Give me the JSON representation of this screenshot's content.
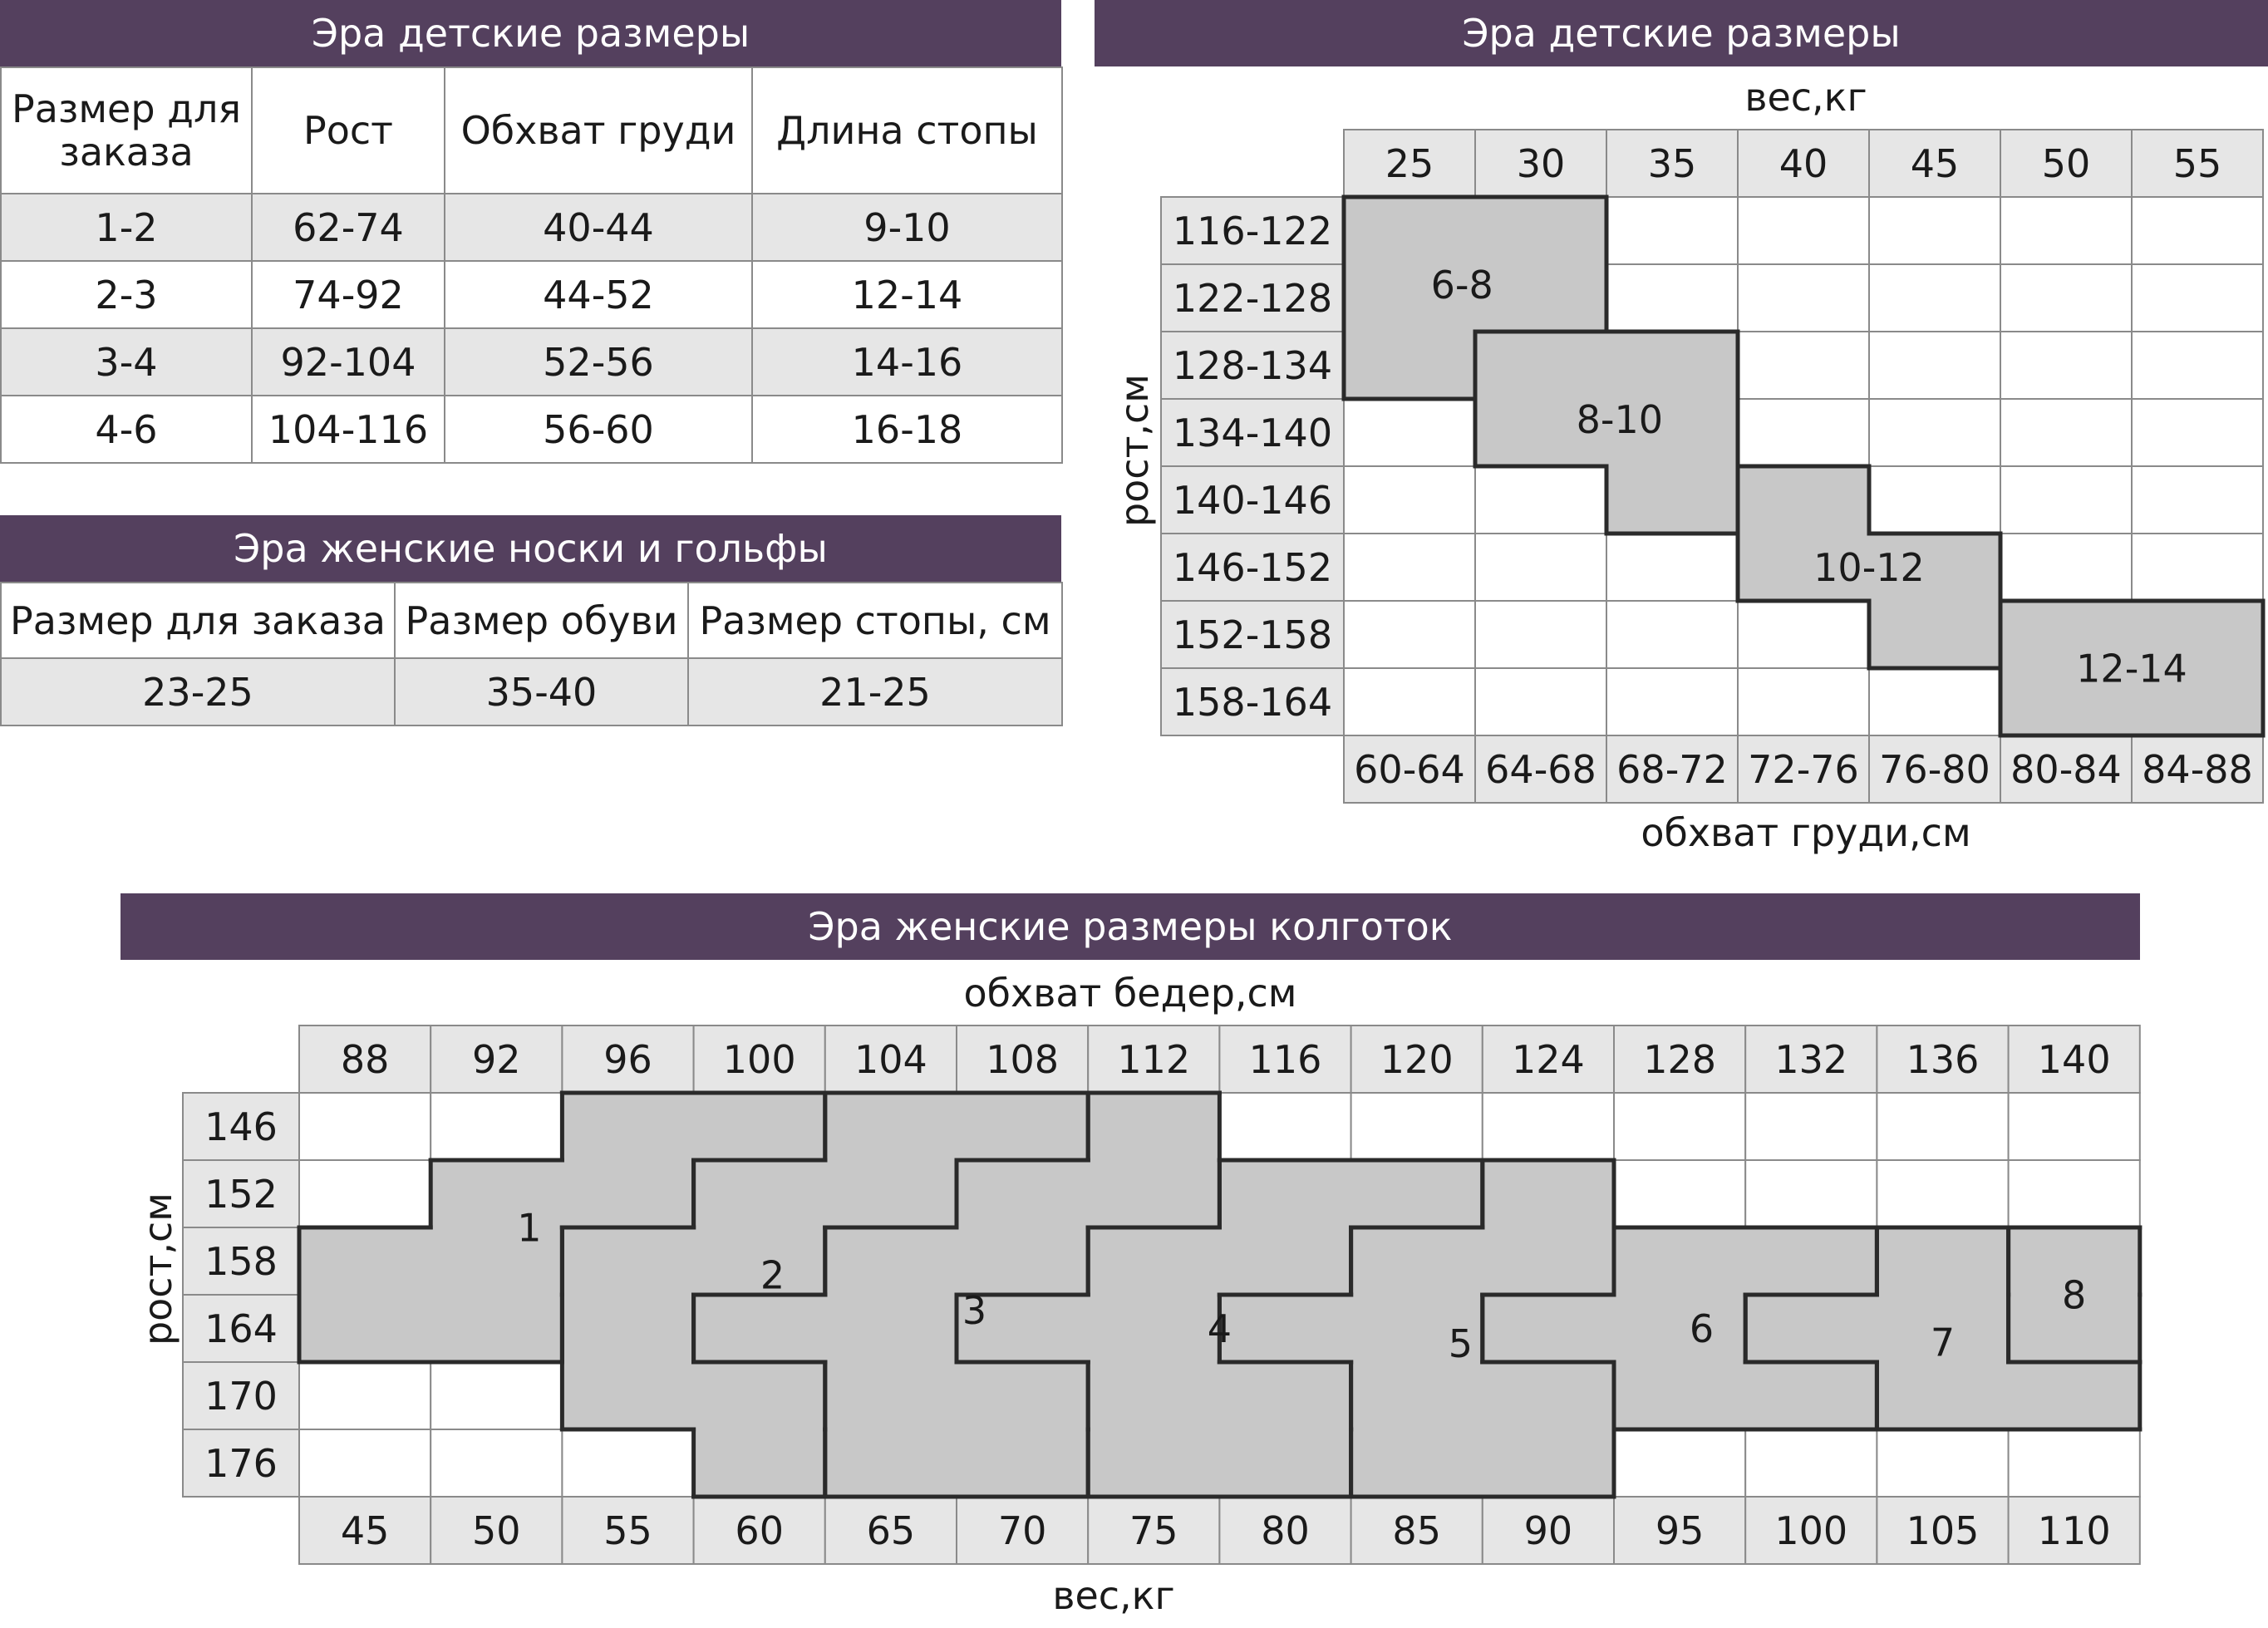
{
  "kids_table": {
    "title": "Эра детские размеры",
    "headers": [
      "Размер для заказа",
      "Рост",
      "Обхват груди",
      "Длина стопы"
    ],
    "rows": [
      [
        "1-2",
        "62-74",
        "40-44",
        "9-10"
      ],
      [
        "2-3",
        "74-92",
        "44-52",
        "12-14"
      ],
      [
        "3-4",
        "92-104",
        "52-56",
        "14-16"
      ],
      [
        "4-6",
        "104-116",
        "56-60",
        "16-18"
      ]
    ]
  },
  "socks_table": {
    "title": "Эра женские носки и гольфы",
    "headers": [
      "Размер для заказа",
      "Размер обуви",
      "Размер стопы, см"
    ],
    "rows": [
      [
        "23-25",
        "35-40",
        "21-25"
      ]
    ]
  },
  "kids_grid": {
    "title": "Эра детские размеры",
    "top_label": "вес,кг",
    "left_label": "рост,см",
    "bottom_label": "обхват груди,см",
    "weights": [
      "25",
      "30",
      "35",
      "40",
      "45",
      "50",
      "55"
    ],
    "heights": [
      "116-122",
      "122-128",
      "128-134",
      "134-140",
      "140-146",
      "146-152",
      "152-158",
      "158-164"
    ],
    "chest": [
      "60-64",
      "64-68",
      "68-72",
      "72-76",
      "76-80",
      "80-84",
      "84-88"
    ],
    "sizes": [
      {
        "label": "6-8",
        "cells": [
          [
            0,
            0
          ],
          [
            0,
            1
          ],
          [
            1,
            0
          ],
          [
            1,
            1
          ],
          [
            2,
            0
          ]
        ]
      },
      {
        "label": "8-10",
        "cells": [
          [
            2,
            1
          ],
          [
            2,
            2
          ],
          [
            3,
            1
          ],
          [
            3,
            2
          ],
          [
            4,
            2
          ]
        ]
      },
      {
        "label": "10-12",
        "cells": [
          [
            4,
            3
          ],
          [
            5,
            3
          ],
          [
            5,
            4
          ],
          [
            6,
            4
          ]
        ]
      },
      {
        "label": "12-14",
        "cells": [
          [
            6,
            5
          ],
          [
            6,
            6
          ],
          [
            7,
            5
          ],
          [
            7,
            6
          ]
        ]
      }
    ]
  },
  "tights_grid": {
    "title": "Эра женские размеры колготок",
    "top_label": "обхват бедер,см",
    "left_label": "рост,см",
    "bottom_label": "вес,кг",
    "hips": [
      "88",
      "92",
      "96",
      "100",
      "104",
      "108",
      "112",
      "116",
      "120",
      "124",
      "128",
      "132",
      "136",
      "140"
    ],
    "heights": [
      "146",
      "152",
      "158",
      "164",
      "170",
      "176"
    ],
    "weights": [
      "45",
      "50",
      "55",
      "60",
      "65",
      "70",
      "75",
      "80",
      "85",
      "90",
      "95",
      "100",
      "105",
      "110"
    ],
    "sizes": [
      {
        "label": "1",
        "cells": [
          [
            1,
            1
          ],
          [
            2,
            0
          ],
          [
            2,
            1
          ],
          [
            3,
            0
          ],
          [
            3,
            1
          ],
          [
            0,
            2
          ],
          [
            0,
            3
          ],
          [
            1,
            2
          ]
        ]
      },
      {
        "label": "2",
        "cells": [
          [
            0,
            4
          ],
          [
            0,
            5
          ],
          [
            1,
            3
          ],
          [
            1,
            4
          ],
          [
            2,
            2
          ],
          [
            2,
            3
          ],
          [
            3,
            2
          ],
          [
            4,
            2
          ],
          [
            4,
            3
          ],
          [
            5,
            3
          ]
        ]
      },
      {
        "label": "3",
        "cells": [
          [
            0,
            6
          ],
          [
            1,
            5
          ],
          [
            1,
            6
          ],
          [
            2,
            4
          ],
          [
            2,
            5
          ],
          [
            3,
            3
          ],
          [
            3,
            4
          ],
          [
            4,
            4
          ],
          [
            4,
            5
          ],
          [
            5,
            4
          ],
          [
            5,
            5
          ]
        ]
      },
      {
        "label": "4",
        "cells": [
          [
            1,
            7
          ],
          [
            1,
            8
          ],
          [
            2,
            6
          ],
          [
            2,
            7
          ],
          [
            3,
            5
          ],
          [
            3,
            6
          ],
          [
            4,
            6
          ],
          [
            4,
            7
          ],
          [
            5,
            6
          ],
          [
            5,
            7
          ]
        ]
      },
      {
        "label": "5",
        "cells": [
          [
            1,
            9
          ],
          [
            2,
            8
          ],
          [
            2,
            9
          ],
          [
            3,
            7
          ],
          [
            3,
            8
          ],
          [
            4,
            8
          ],
          [
            4,
            9
          ],
          [
            5,
            8
          ],
          [
            5,
            9
          ]
        ]
      },
      {
        "label": "6",
        "cells": [
          [
            2,
            10
          ],
          [
            2,
            11
          ],
          [
            3,
            9
          ],
          [
            3,
            10
          ],
          [
            4,
            10
          ],
          [
            4,
            11
          ]
        ]
      },
      {
        "label": "7",
        "cells": [
          [
            2,
            12
          ],
          [
            3,
            11
          ],
          [
            3,
            12
          ],
          [
            4,
            12
          ],
          [
            4,
            13
          ]
        ]
      },
      {
        "label": "8",
        "cells": [
          [
            2,
            13
          ],
          [
            3,
            13
          ]
        ]
      }
    ]
  },
  "colors": {
    "banner": "#54405e",
    "shade": "#e6e6e6",
    "fill": "#c8c8c8",
    "grid": "#8a8a8a",
    "outline": "#2a2a2a"
  }
}
